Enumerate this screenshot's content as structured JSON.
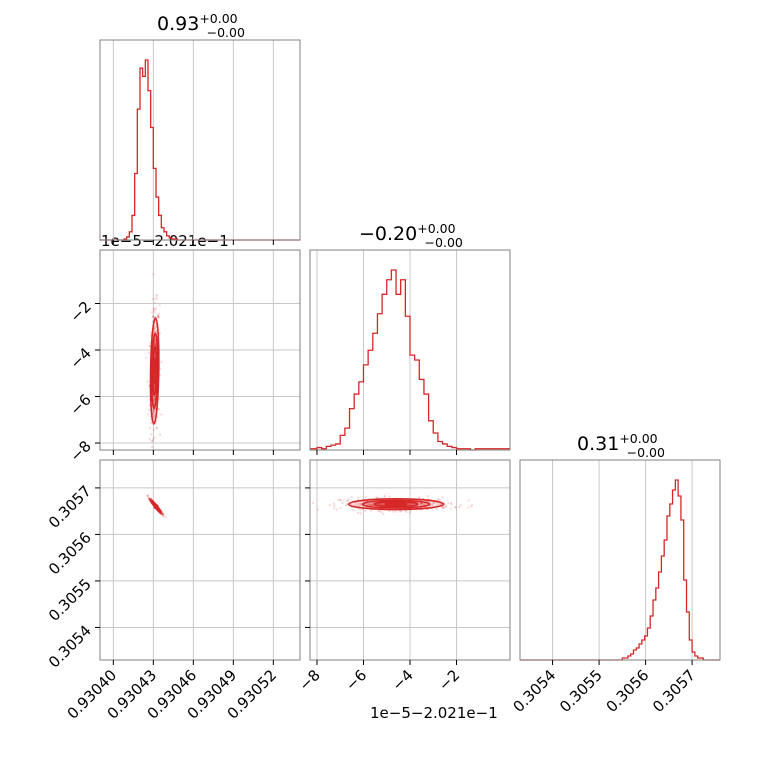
{
  "chart_data": {
    "type": "corner",
    "color": "#d62728",
    "grid": true,
    "parameters": [
      {
        "title": "0.93",
        "err_plus": "+0.00",
        "err_minus": "−0.00"
      },
      {
        "title": "−0.20",
        "err_plus": "+0.00",
        "err_minus": "−0.00"
      },
      {
        "title": "0.31",
        "err_plus": "+0.00",
        "err_minus": "−0.00"
      }
    ],
    "axes": {
      "p0": {
        "range": [
          0.93039,
          0.93054
        ],
        "ticks": [
          0.9304,
          0.93043,
          0.93046,
          0.93049,
          0.93052
        ],
        "tick_labels": [
          "0.93040",
          "0.93043",
          "0.93046",
          "0.93049",
          "0.93052"
        ]
      },
      "p1": {
        "range": [
          -8.3,
          0.3
        ],
        "ticks": [
          -8,
          -6,
          -4,
          -2
        ],
        "tick_labels": [
          "−8",
          "−6",
          "−4",
          "−2"
        ],
        "offset_label": "1e−5−2.021e−1"
      },
      "p2": {
        "range": [
          0.30533,
          0.30576
        ],
        "ticks": [
          0.3054,
          0.3055,
          0.3056,
          0.3057
        ],
        "tick_labels": [
          "0.3054",
          "0.3055",
          "0.3056",
          "0.3057"
        ]
      }
    },
    "histograms": {
      "p0": {
        "bin_edges": [
          0.93039,
          0.930392,
          0.930394,
          0.930396,
          0.930398,
          0.9304,
          0.930402,
          0.930404,
          0.930406,
          0.930408,
          0.93041,
          0.930412,
          0.930414,
          0.930416,
          0.930418,
          0.93042,
          0.930422,
          0.930424,
          0.930426,
          0.930428,
          0.93043,
          0.930432,
          0.930434,
          0.930436,
          0.930438,
          0.93044,
          0.930442,
          0.930444,
          0.930446,
          0.930448,
          0.93045,
          0.930452,
          0.930454,
          0.930456,
          0.930458,
          0.93046,
          0.93054
        ],
        "counts": [
          0,
          0,
          0,
          0,
          0,
          0,
          0,
          0,
          0,
          1,
          3,
          8,
          24,
          65,
          128,
          168,
          160,
          176,
          146,
          110,
          70,
          42,
          24,
          12,
          8,
          4,
          2,
          1,
          1,
          0,
          0,
          0,
          0,
          0,
          0,
          0
        ]
      },
      "p1": {
        "bin_edges": [
          -8.3,
          -8.0,
          -7.8,
          -7.6,
          -7.4,
          -7.2,
          -7.0,
          -6.8,
          -6.6,
          -6.4,
          -6.2,
          -6.0,
          -5.8,
          -5.6,
          -5.4,
          -5.2,
          -5.0,
          -4.8,
          -4.6,
          -4.4,
          -4.2,
          -4.0,
          -3.8,
          -3.6,
          -3.4,
          -3.2,
          -3.0,
          -2.8,
          -2.6,
          -2.4,
          -2.2,
          -2.0,
          -1.8,
          -1.6,
          -1.4,
          -1.2,
          0.3
        ],
        "counts": [
          1,
          2,
          1,
          3,
          4,
          5,
          12,
          18,
          34,
          46,
          56,
          70,
          82,
          96,
          112,
          128,
          140,
          148,
          128,
          140,
          110,
          78,
          74,
          58,
          46,
          24,
          14,
          7,
          5,
          3,
          2,
          1,
          1,
          1,
          0,
          1
        ]
      },
      "p2": {
        "bin_edges": [
          0.30533,
          0.30555,
          0.305556,
          0.305562,
          0.305568,
          0.305574,
          0.30558,
          0.305586,
          0.305592,
          0.305598,
          0.305604,
          0.30561,
          0.305616,
          0.305622,
          0.305628,
          0.305634,
          0.30564,
          0.305646,
          0.305652,
          0.305658,
          0.305664,
          0.30567,
          0.305676,
          0.305682,
          0.305688,
          0.305694,
          0.3057,
          0.305706,
          0.305712,
          0.305718,
          0.305724,
          0.30573,
          0.305736,
          0.305742,
          0.305748,
          0.305754,
          0.30576
        ],
        "counts": [
          0,
          1,
          1,
          2,
          3,
          5,
          6,
          8,
          10,
          12,
          16,
          22,
          30,
          36,
          44,
          52,
          60,
          72,
          78,
          85,
          90,
          82,
          70,
          40,
          24,
          10,
          4,
          2,
          1,
          1,
          0,
          0,
          0,
          0,
          0,
          0
        ]
      }
    },
    "joint": {
      "p0_p1": {
        "center": [
          0.930431,
          -4.9
        ],
        "sigma": [
          1.3e-06,
          0.95
        ],
        "rho": 0.2
      },
      "p0_p2": {
        "center": [
          0.930432,
          0.30566
        ],
        "sigma": [
          1.6e-06,
          5.7e-06
        ],
        "rho": -0.97
      },
      "p1_p2": {
        "center": [
          -4.6,
          0.305665
        ],
        "sigma": [
          0.85,
          4.8e-06
        ],
        "rho": 0.0
      }
    }
  }
}
